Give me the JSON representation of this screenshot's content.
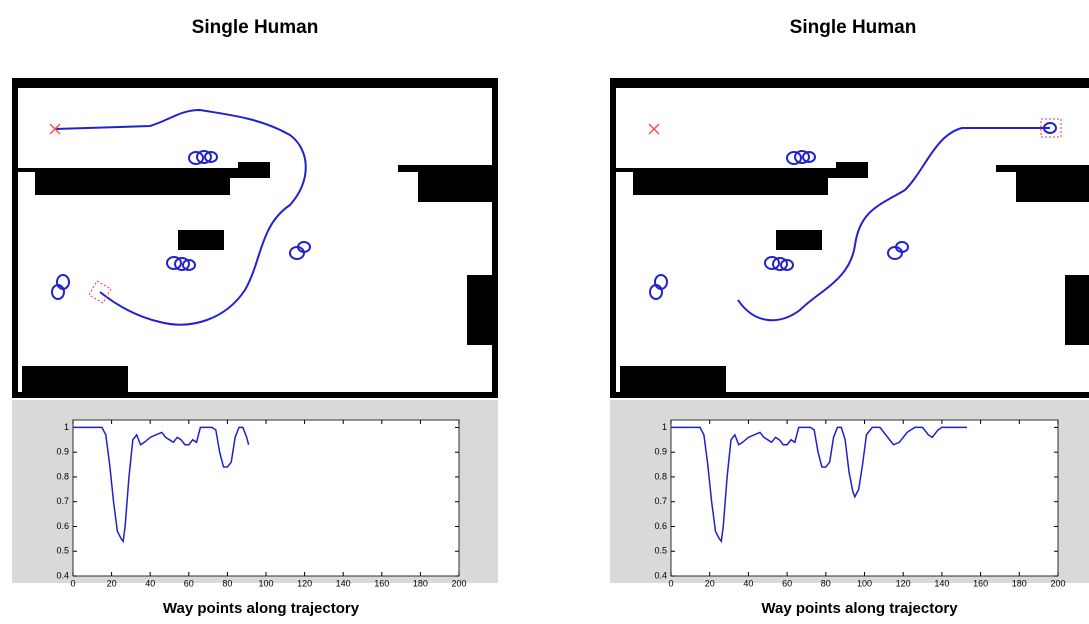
{
  "chart_data": [
    {
      "type": "line",
      "title": "Single Human",
      "xlabel": "Way points along trajectory",
      "color": "#1f1fcc",
      "x": [
        0,
        5,
        10,
        15,
        17,
        19,
        21,
        23,
        25,
        26,
        27,
        29,
        31,
        33,
        35,
        37,
        40,
        43,
        46,
        48,
        50,
        52,
        54,
        56,
        58,
        60,
        62,
        64,
        66,
        68,
        70,
        72,
        74,
        76,
        78,
        80,
        82,
        84,
        86,
        88,
        90,
        91
      ],
      "values": [
        1,
        1,
        1,
        1,
        0.97,
        0.85,
        0.7,
        0.58,
        0.55,
        0.54,
        0.6,
        0.8,
        0.95,
        0.97,
        0.93,
        0.94,
        0.96,
        0.97,
        0.98,
        0.96,
        0.95,
        0.94,
        0.96,
        0.95,
        0.93,
        0.93,
        0.95,
        0.94,
        1,
        1,
        1,
        1,
        0.99,
        0.9,
        0.84,
        0.84,
        0.86,
        0.96,
        1,
        1,
        0.96,
        0.93
      ],
      "xlim": [
        0,
        200
      ],
      "ylim": [
        0.4,
        1.03
      ],
      "xticks": [
        0,
        20,
        40,
        60,
        80,
        100,
        120,
        140,
        160,
        180,
        200
      ],
      "yticks": [
        0.4,
        0.5,
        0.6,
        0.7,
        0.8,
        0.9,
        1
      ]
    },
    {
      "type": "line",
      "title": "Single Human",
      "xlabel": "Way points along trajectory",
      "color": "#1f1fcc",
      "x": [
        0,
        5,
        10,
        15,
        17,
        19,
        21,
        23,
        25,
        26,
        27,
        29,
        31,
        33,
        35,
        37,
        40,
        43,
        46,
        48,
        50,
        52,
        54,
        56,
        58,
        60,
        62,
        64,
        66,
        68,
        70,
        72,
        74,
        76,
        78,
        80,
        82,
        84,
        86,
        88,
        90,
        92,
        94,
        95,
        97,
        99,
        101,
        104,
        108,
        112,
        115,
        118,
        122,
        126,
        130,
        133,
        135,
        138,
        140,
        145,
        150,
        153
      ],
      "values": [
        1,
        1,
        1,
        1,
        0.97,
        0.85,
        0.7,
        0.58,
        0.55,
        0.54,
        0.6,
        0.8,
        0.95,
        0.97,
        0.93,
        0.94,
        0.96,
        0.97,
        0.98,
        0.96,
        0.95,
        0.94,
        0.96,
        0.95,
        0.93,
        0.93,
        0.95,
        0.94,
        1,
        1,
        1,
        1,
        0.99,
        0.9,
        0.84,
        0.84,
        0.86,
        0.96,
        1,
        1,
        0.95,
        0.82,
        0.74,
        0.72,
        0.75,
        0.85,
        0.97,
        1,
        1,
        0.96,
        0.93,
        0.94,
        0.98,
        1,
        1,
        0.97,
        0.96,
        0.99,
        1,
        1,
        1,
        1
      ],
      "xlim": [
        0,
        200
      ],
      "ylim": [
        0.4,
        1.03
      ],
      "xticks": [
        0,
        20,
        40,
        60,
        80,
        100,
        120,
        140,
        160,
        180,
        200
      ],
      "yticks": [
        0.4,
        0.5,
        0.6,
        0.7,
        0.8,
        0.9,
        1
      ]
    }
  ]
}
